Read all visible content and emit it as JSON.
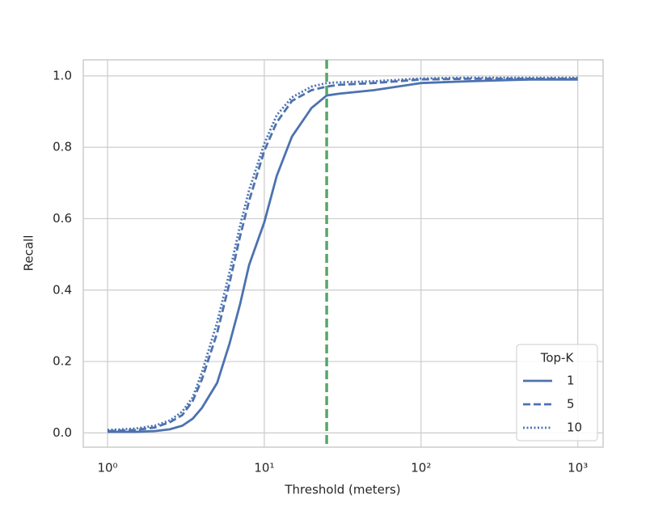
{
  "chart_data": {
    "type": "line",
    "x_label": "Threshold (meters)",
    "y_label": "Recall",
    "x_scale": "log",
    "x": [
      1,
      1.5,
      2,
      2.5,
      3,
      3.5,
      4,
      5,
      6,
      7,
      8,
      10,
      12,
      15,
      20,
      25,
      30,
      50,
      100,
      200,
      500,
      1000
    ],
    "series": [
      {
        "name": "1",
        "color": "#4c72b0",
        "dash": "solid",
        "values": [
          0.003,
          0.003,
          0.005,
          0.01,
          0.02,
          0.04,
          0.07,
          0.14,
          0.25,
          0.36,
          0.47,
          0.59,
          0.72,
          0.83,
          0.91,
          0.945,
          0.95,
          0.96,
          0.98,
          0.985,
          0.99,
          0.99
        ]
      },
      {
        "name": "5",
        "color": "#4c72b0",
        "dash": "dashed",
        "values": [
          0.005,
          0.008,
          0.015,
          0.03,
          0.05,
          0.09,
          0.15,
          0.28,
          0.42,
          0.55,
          0.65,
          0.79,
          0.87,
          0.93,
          0.96,
          0.97,
          0.975,
          0.98,
          0.99,
          0.992,
          0.992,
          0.992
        ]
      },
      {
        "name": "10",
        "color": "#4c72b0",
        "dash": "dotted",
        "values": [
          0.008,
          0.012,
          0.02,
          0.035,
          0.06,
          0.1,
          0.17,
          0.31,
          0.45,
          0.58,
          0.68,
          0.81,
          0.89,
          0.94,
          0.97,
          0.98,
          0.982,
          0.985,
          0.993,
          0.995,
          0.995,
          0.995
        ]
      }
    ],
    "vline": 25,
    "vline_color": "#55a868",
    "xlim": [
      0.7,
      1450
    ],
    "ylim": [
      -0.04,
      1.045
    ],
    "xticks": [
      {
        "value": 1,
        "label": "10⁰"
      },
      {
        "value": 10,
        "label": "10¹"
      },
      {
        "value": 100,
        "label": "10²"
      },
      {
        "value": 1000,
        "label": "10³"
      }
    ],
    "yticks": [
      {
        "value": 0,
        "label": "0.0"
      },
      0.2,
      0.4,
      0.6,
      0.8,
      {
        "value": 1,
        "label": "1.0"
      }
    ],
    "grid": true,
    "legend_title": "Top-K",
    "legend_position": "lower right"
  }
}
